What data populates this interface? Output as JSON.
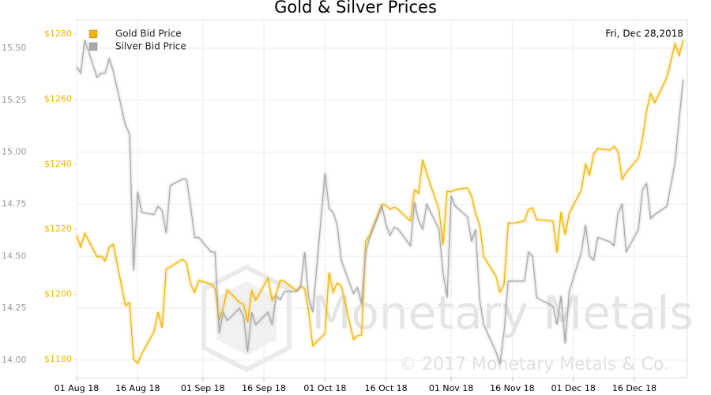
{
  "chart_data": {
    "type": "line",
    "title": "Gold & Silver Prices",
    "date_label": "Fri, Dec 28,2018",
    "watermark": "Monetary Metals",
    "copyright": "© 2017 Monetary Metals & Co.",
    "legend": "upper left",
    "grid": true,
    "x": [
      "2018-08-01",
      "2018-08-02",
      "2018-08-03",
      "2018-08-06",
      "2018-08-07",
      "2018-08-08",
      "2018-08-09",
      "2018-08-10",
      "2018-08-13",
      "2018-08-14",
      "2018-08-15",
      "2018-08-16",
      "2018-08-17",
      "2018-08-20",
      "2018-08-21",
      "2018-08-22",
      "2018-08-23",
      "2018-08-24",
      "2018-08-27",
      "2018-08-28",
      "2018-08-29",
      "2018-08-30",
      "2018-08-31",
      "2018-09-03",
      "2018-09-04",
      "2018-09-05",
      "2018-09-06",
      "2018-09-07",
      "2018-09-10",
      "2018-09-11",
      "2018-09-12",
      "2018-09-13",
      "2018-09-14",
      "2018-09-17",
      "2018-09-18",
      "2018-09-19",
      "2018-09-20",
      "2018-09-21",
      "2018-09-24",
      "2018-09-25",
      "2018-09-26",
      "2018-09-27",
      "2018-09-28",
      "2018-10-01",
      "2018-10-02",
      "2018-10-03",
      "2018-10-04",
      "2018-10-05",
      "2018-10-08",
      "2018-10-09",
      "2018-10-10",
      "2018-10-11",
      "2018-10-12",
      "2018-10-15",
      "2018-10-16",
      "2018-10-17",
      "2018-10-18",
      "2018-10-19",
      "2018-10-22",
      "2018-10-23",
      "2018-10-24",
      "2018-10-25",
      "2018-10-26",
      "2018-10-29",
      "2018-10-30",
      "2018-10-31",
      "2018-11-01",
      "2018-11-02",
      "2018-11-05",
      "2018-11-06",
      "2018-11-07",
      "2018-11-08",
      "2018-11-09",
      "2018-11-12",
      "2018-11-13",
      "2018-11-14",
      "2018-11-15",
      "2018-11-16",
      "2018-11-19",
      "2018-11-20",
      "2018-11-21",
      "2018-11-22",
      "2018-11-23",
      "2018-11-26",
      "2018-11-27",
      "2018-11-28",
      "2018-11-29",
      "2018-11-30",
      "2018-12-03",
      "2018-12-04",
      "2018-12-05",
      "2018-12-06",
      "2018-12-07",
      "2018-12-10",
      "2018-12-11",
      "2018-12-12",
      "2018-12-13",
      "2018-12-14",
      "2018-12-17",
      "2018-12-18",
      "2018-12-19",
      "2018-12-20",
      "2018-12-21",
      "2018-12-24",
      "2018-12-26",
      "2018-12-27",
      "2018-12-28"
    ],
    "xlim": [
      "2018-08-01",
      "2018-12-29"
    ],
    "xticks": [
      {
        "value": "2018-08-01",
        "label": "01 Aug 18"
      },
      {
        "value": "2018-08-16",
        "label": "16 Aug 18"
      },
      {
        "value": "2018-09-01",
        "label": "01 Sep 18"
      },
      {
        "value": "2018-09-16",
        "label": "16 Sep 18"
      },
      {
        "value": "2018-10-01",
        "label": "01 Oct 18"
      },
      {
        "value": "2018-10-16",
        "label": "16 Oct 18"
      },
      {
        "value": "2018-11-01",
        "label": "01 Nov 18"
      },
      {
        "value": "2018-11-16",
        "label": "16 Nov 18"
      },
      {
        "value": "2018-12-01",
        "label": "01 Dec 18"
      },
      {
        "value": "2018-12-16",
        "label": "16 Dec 18"
      }
    ],
    "ylim": [
      1174.4,
      1284.4
    ],
    "yticks": [
      {
        "value": 1180,
        "label": "$1180"
      },
      {
        "value": 1200,
        "label": "$1200"
      },
      {
        "value": 1220,
        "label": "$1220"
      },
      {
        "value": 1240,
        "label": "$1240"
      },
      {
        "value": 1260,
        "label": "$1260"
      },
      {
        "value": 1280,
        "label": "$1280"
      }
    ],
    "y2lim": [
      13.916,
      15.637
    ],
    "y2ticks": [
      {
        "value": 14,
        "label": "14.00"
      },
      14.25,
      {
        "value": 14.5,
        "label": "14.50"
      },
      14.75,
      {
        "value": 15,
        "label": "15.00"
      },
      15.25,
      {
        "value": 15.5,
        "label": "15.50"
      }
    ],
    "series": [
      {
        "name": "Gold Bid Price",
        "color": "#f0b400",
        "axis": "y",
        "values": [
          1218.1,
          1214.5,
          1218.8,
          1211.5,
          1211.8,
          1210.3,
          1214.5,
          1215.4,
          1196.5,
          1197.5,
          1180,
          1178.8,
          1181.7,
          1188.5,
          1194.6,
          1189.7,
          1207.9,
          1208.4,
          1210.8,
          1209.6,
          1203.1,
          1200.6,
          1204.3,
          1203.1,
          1201.8,
          1192.1,
          1195.8,
          1201.4,
          1197.5,
          1197,
          1191.4,
          1201.1,
          1198.2,
          1205,
          1198.2,
          1200.1,
          1204.3,
          1204,
          1201.1,
          1202.6,
          1201.8,
          1194.6,
          1184.1,
          1188,
          1206.7,
          1200.6,
          1203.5,
          1202.6,
          1186.1,
          1187.3,
          1187.5,
          1216.4,
          1218.1,
          1227.8,
          1227.3,
          1226.1,
          1226.8,
          1226.1,
          1222.5,
          1232.2,
          1231,
          1241.4,
          1237.1,
          1226.1,
          1215.2,
          1231.7,
          1231.5,
          1232.2,
          1232.7,
          1230.2,
          1224.9,
          1221.3,
          1211.6,
          1205.5,
          1200.6,
          1203.1,
          1222,
          1221.8,
          1222.5,
          1226.1,
          1226.6,
          1222.9,
          1222.9,
          1222.5,
          1212.8,
          1225.4,
          1218.3,
          1224.9,
          1232.2,
          1240,
          1236.6,
          1243.1,
          1244.8,
          1244.3,
          1245.5,
          1243.8,
          1235.3,
          1237.5,
          1241.9,
          1247.9,
          1256.4,
          1261.8,
          1258.9,
          1266.7,
          1277.1,
          1273.4,
          1278.3
        ]
      },
      {
        "name": "Silver Bid Price",
        "color": "#a9a9a9",
        "axis": "y2",
        "values": [
          15.41,
          15.38,
          15.54,
          15.36,
          15.38,
          15.38,
          15.45,
          15.39,
          15.13,
          15.09,
          14.43,
          14.81,
          14.71,
          14.7,
          14.74,
          14.72,
          14.61,
          14.84,
          14.87,
          14.87,
          14.74,
          14.59,
          14.59,
          14.52,
          14.52,
          14.13,
          14.23,
          14.19,
          14.25,
          14.21,
          14.04,
          14.23,
          14.17,
          14.23,
          14.17,
          14.31,
          14.29,
          14.33,
          14.33,
          14.35,
          14.52,
          14.3,
          14.23,
          14.9,
          14.73,
          14.71,
          14.65,
          14.48,
          14.32,
          14.35,
          14.27,
          14.52,
          14.59,
          14.74,
          14.65,
          14.6,
          14.64,
          14.63,
          14.55,
          14.76,
          14.67,
          14.63,
          14.75,
          14.63,
          14.42,
          14.3,
          14.79,
          14.74,
          14.69,
          14.57,
          14.63,
          14.29,
          14.17,
          14.04,
          13.98,
          14.14,
          14.38,
          14.38,
          14.38,
          14.52,
          14.5,
          14.3,
          14.29,
          14.26,
          14.17,
          14.31,
          14.08,
          14.33,
          14.52,
          14.65,
          14.5,
          14.48,
          14.59,
          14.57,
          14.55,
          14.71,
          14.75,
          14.52,
          14.63,
          14.82,
          14.85,
          14.68,
          14.7,
          14.74,
          14.95,
          15.16,
          15.35
        ]
      }
    ]
  }
}
